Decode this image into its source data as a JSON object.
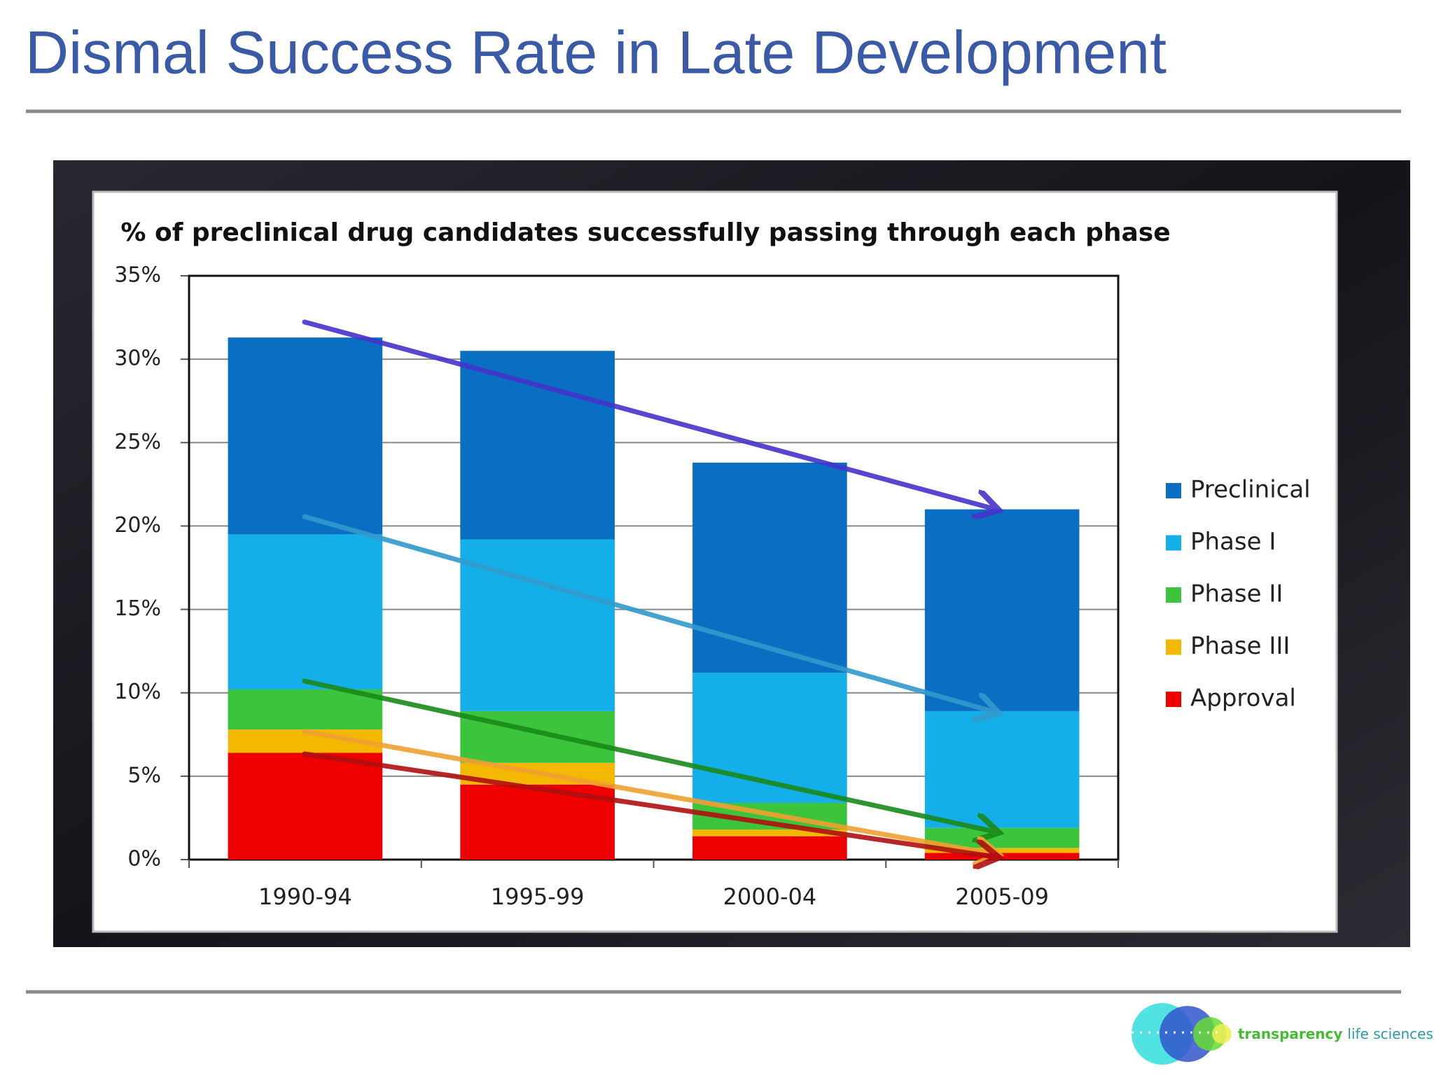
{
  "title": "Dismal Success Rate in Late Development",
  "logo": {
    "brand": "transparency",
    "suffix": "life sciences",
    "mark": "©"
  },
  "chart_data": {
    "type": "stacked_bar",
    "title": "% of preclinical drug candidates successfully passing through each phase",
    "categories": [
      "1990-94",
      "1995-99",
      "2000-04",
      "2005-09"
    ],
    "series": [
      {
        "name": "Approval",
        "color": "#ee0000",
        "values": [
          6.4,
          4.5,
          1.4,
          0.4
        ]
      },
      {
        "name": "Phase III",
        "color": "#f5b800",
        "values": [
          1.4,
          1.3,
          0.4,
          0.3
        ]
      },
      {
        "name": "Phase II",
        "color": "#3cc43c",
        "values": [
          2.4,
          3.1,
          1.6,
          1.2
        ]
      },
      {
        "name": "Phase I",
        "color": "#14aee8",
        "values": [
          9.3,
          10.3,
          7.8,
          7.0
        ]
      },
      {
        "name": "Preclinical",
        "color": "#0a6fc2",
        "values": [
          11.8,
          11.3,
          12.6,
          12.1
        ]
      }
    ],
    "ylim": [
      0,
      35
    ],
    "yticks": [
      {
        "value": 0,
        "label": "0%"
      },
      {
        "value": 5,
        "label": "5%"
      },
      {
        "value": 10,
        "label": "10%"
      },
      {
        "value": 15,
        "label": "15%"
      },
      {
        "value": 20,
        "label": "20%"
      },
      {
        "value": 25,
        "label": "25%"
      },
      {
        "value": 30,
        "label": "30%"
      },
      {
        "value": 35,
        "label": "35%"
      }
    ],
    "grid": true,
    "legend": "right"
  }
}
